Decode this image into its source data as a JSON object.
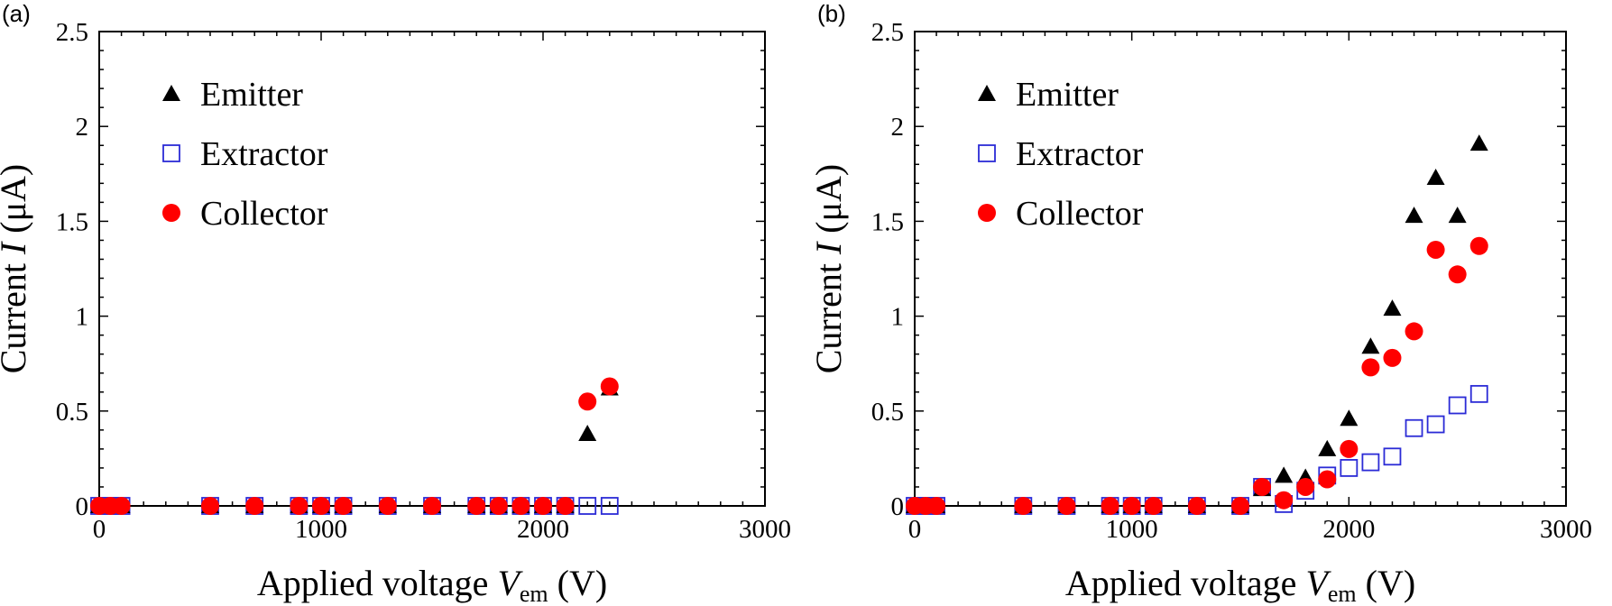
{
  "chart_data": [
    {
      "type": "scatter",
      "panel_label": "(a)",
      "xlabel": {
        "prefix": "Applied voltage ",
        "var": "V",
        "sub": "em",
        "suffix": " (V)"
      },
      "ylabel": {
        "prefix": "Current ",
        "var": "I",
        "suffix": " (μA)"
      },
      "xlim": [
        0,
        3000
      ],
      "ylim": [
        0,
        2.5
      ],
      "xticks": [
        "0",
        "1000",
        "2000",
        "3000"
      ],
      "yticks": [
        "0",
        "0.5",
        "1",
        "1.5",
        "2",
        "2.5"
      ],
      "legend_position": "top-left",
      "series": [
        {
          "name": "Emitter",
          "marker": "triangle",
          "color": "#000000",
          "x": [
            0,
            50,
            100,
            500,
            700,
            900,
            1000,
            1100,
            1300,
            1500,
            1700,
            1800,
            1900,
            2000,
            2100,
            2200,
            2300
          ],
          "y": [
            0,
            0,
            0,
            0,
            0,
            0,
            0,
            0,
            0,
            0,
            0,
            0,
            0,
            0,
            0,
            0.38,
            0.62
          ]
        },
        {
          "name": "Extractor",
          "marker": "square-open",
          "color": "#2b2bd6",
          "x": [
            0,
            50,
            100,
            500,
            700,
            900,
            1000,
            1100,
            1300,
            1500,
            1700,
            1800,
            1900,
            2000,
            2100,
            2200,
            2300
          ],
          "y": [
            0,
            0,
            0,
            0,
            0,
            0,
            0,
            0,
            0,
            0,
            0,
            0,
            0,
            0,
            0,
            0,
            0
          ]
        },
        {
          "name": "Collector",
          "marker": "circle",
          "color": "#ff0000",
          "x": [
            0,
            50,
            100,
            500,
            700,
            900,
            1000,
            1100,
            1300,
            1500,
            1700,
            1800,
            1900,
            2000,
            2100,
            2200,
            2300
          ],
          "y": [
            0,
            0,
            0,
            0,
            0,
            0,
            0,
            0,
            0,
            0,
            0,
            0,
            0,
            0,
            0,
            0.55,
            0.63
          ]
        }
      ]
    },
    {
      "type": "scatter",
      "panel_label": "(b)",
      "xlabel": {
        "prefix": "Applied voltage ",
        "var": "V",
        "sub": "em",
        "suffix": " (V)"
      },
      "ylabel": {
        "prefix": "Current ",
        "var": "I",
        "suffix": " (μA)"
      },
      "xlim": [
        0,
        3000
      ],
      "ylim": [
        0,
        2.5
      ],
      "xticks": [
        "0",
        "1000",
        "2000",
        "3000"
      ],
      "yticks": [
        "0",
        "0.5",
        "1",
        "1.5",
        "2",
        "2.5"
      ],
      "legend_position": "top-left",
      "series": [
        {
          "name": "Emitter",
          "marker": "triangle",
          "color": "#000000",
          "x": [
            0,
            50,
            100,
            500,
            700,
            900,
            1000,
            1100,
            1300,
            1500,
            1600,
            1700,
            1800,
            1900,
            2000,
            2100,
            2200,
            2300,
            2400,
            2500,
            2600
          ],
          "y": [
            0,
            0,
            0,
            0,
            0,
            0,
            0,
            0,
            0,
            0,
            0.09,
            0.16,
            0.15,
            0.3,
            0.46,
            0.84,
            1.04,
            1.53,
            1.73,
            1.53,
            1.91
          ]
        },
        {
          "name": "Extractor",
          "marker": "square-open",
          "color": "#2b2bd6",
          "x": [
            0,
            50,
            100,
            500,
            700,
            900,
            1000,
            1100,
            1300,
            1500,
            1600,
            1700,
            1800,
            1900,
            2000,
            2100,
            2200,
            2300,
            2400,
            2500,
            2600
          ],
          "y": [
            0,
            0,
            0,
            0,
            0,
            0,
            0,
            0,
            0,
            0,
            0.1,
            0.01,
            0.08,
            0.16,
            0.2,
            0.23,
            0.26,
            0.41,
            0.43,
            0.53,
            0.59
          ]
        },
        {
          "name": "Collector",
          "marker": "circle",
          "color": "#ff0000",
          "x": [
            0,
            50,
            100,
            500,
            700,
            900,
            1000,
            1100,
            1300,
            1500,
            1600,
            1700,
            1800,
            1900,
            2000,
            2100,
            2200,
            2300,
            2400,
            2500,
            2600
          ],
          "y": [
            0,
            0,
            0,
            0,
            0,
            0,
            0,
            0,
            0,
            0,
            0.1,
            0.03,
            0.1,
            0.14,
            0.3,
            0.73,
            0.78,
            0.92,
            1.35,
            1.22,
            1.37
          ]
        }
      ]
    }
  ]
}
